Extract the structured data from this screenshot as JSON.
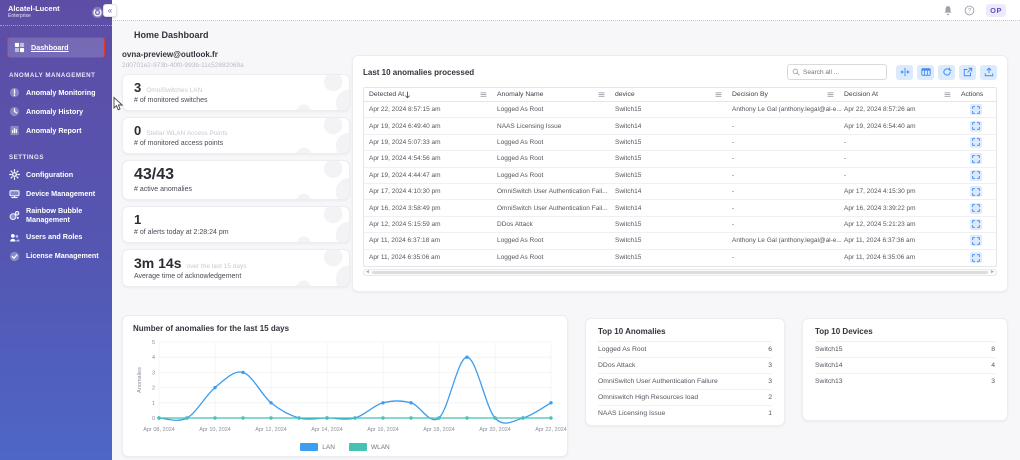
{
  "brand": {
    "name": "Alcatel-Lucent",
    "sub": "Enterprise"
  },
  "topbar": {
    "avatar_initials": "OP"
  },
  "sidebar": {
    "dashboard_label": "Dashboard",
    "sections": [
      {
        "title": "ANOMALY MANAGEMENT",
        "items": [
          {
            "label": "Anomaly Monitoring",
            "icon": "alert-circle-icon"
          },
          {
            "label": "Anomaly History",
            "icon": "history-clock-icon"
          },
          {
            "label": "Anomaly Report",
            "icon": "report-icon"
          }
        ]
      },
      {
        "title": "SETTINGS",
        "items": [
          {
            "label": "Configuration",
            "icon": "gear-icon"
          },
          {
            "label": "Device Management",
            "icon": "device-icon"
          },
          {
            "label": "Rainbow Bubble Management",
            "icon": "bubble-icon"
          },
          {
            "label": "Users and Roles",
            "icon": "users-icon"
          },
          {
            "label": "License Management",
            "icon": "license-check-icon"
          }
        ]
      }
    ]
  },
  "page": {
    "title": "Home Dashboard",
    "account_email": "ovna-preview@outlook.fr",
    "account_id": "2d0701e2-973b-40f0-993b-11c52882069a"
  },
  "stats": [
    {
      "value": "3",
      "value_suffix": "OmniSwitches LAN",
      "label": "# of monitored switches",
      "size": "small"
    },
    {
      "value": "0",
      "value_suffix": "Stellar WLAN Access Points",
      "label": "# of monitored access points",
      "size": "small"
    },
    {
      "value": "43/43",
      "value_suffix": "",
      "label": "# active anomalies",
      "size": "big"
    },
    {
      "value": "1",
      "value_suffix": "",
      "label": "# of alerts today at 2:28:24 pm",
      "size": "small"
    },
    {
      "value": "3m 14s",
      "value_suffix": "over the last 15 days",
      "label": "Average time of acknowledgement",
      "size": "med"
    }
  ],
  "anomalies_table": {
    "title": "Last 10 anomalies processed",
    "search_placeholder": "Search all ...",
    "columns": [
      "Detected At",
      "Anomaly Name",
      "device",
      "Decision By",
      "Decision At",
      "Actions"
    ],
    "rows": [
      {
        "detected_at": "Apr 22, 2024 8:57:15 am",
        "anomaly_name": "Logged As Root",
        "device": "Switch15",
        "decision_by": "Anthony Le Gal (anthony.legal@al-e...",
        "decision_at": "Apr 22, 2024 8:57:26 am"
      },
      {
        "detected_at": "Apr 19, 2024 6:49:40 am",
        "anomaly_name": "NAAS Licensing Issue",
        "device": "Switch14",
        "decision_by": "-",
        "decision_at": "Apr 19, 2024 6:54:40 am"
      },
      {
        "detected_at": "Apr 19, 2024 5:07:33 am",
        "anomaly_name": "Logged As Root",
        "device": "Switch15",
        "decision_by": "-",
        "decision_at": "-"
      },
      {
        "detected_at": "Apr 19, 2024 4:54:56 am",
        "anomaly_name": "Logged As Root",
        "device": "Switch15",
        "decision_by": "-",
        "decision_at": "-"
      },
      {
        "detected_at": "Apr 19, 2024 4:44:47 am",
        "anomaly_name": "Logged As Root",
        "device": "Switch15",
        "decision_by": "-",
        "decision_at": "-"
      },
      {
        "detected_at": "Apr 17, 2024 4:10:30 pm",
        "anomaly_name": "OmniSwitch User Authentication Fail...",
        "device": "Switch14",
        "decision_by": "-",
        "decision_at": "Apr 17, 2024 4:15:30 pm"
      },
      {
        "detected_at": "Apr 16, 2024 3:58:49 pm",
        "anomaly_name": "OmniSwitch User Authentication Fail...",
        "device": "Switch14",
        "decision_by": "-",
        "decision_at": "Apr 16, 2024 3:39:22 pm"
      },
      {
        "detected_at": "Apr 12, 2024 5:15:59 am",
        "anomaly_name": "DDos Attack",
        "device": "Switch15",
        "decision_by": "-",
        "decision_at": "Apr 12, 2024 5:21:23 am"
      },
      {
        "detected_at": "Apr 11, 2024 6:37:18 am",
        "anomaly_name": "Logged As Root",
        "device": "Switch15",
        "decision_by": "Anthony Le Gal (anthony.legal@al-e...",
        "decision_at": "Apr 11, 2024 6:37:36 am"
      },
      {
        "detected_at": "Apr 11, 2024 6:35:06 am",
        "anomaly_name": "Logged As Root",
        "device": "Switch15",
        "decision_by": "-",
        "decision_at": "Apr 11, 2024 6:35:06 am"
      }
    ]
  },
  "chart_data": {
    "type": "line",
    "title": "Number of anomalies for the last 15 days",
    "x": [
      "Apr 08, 2024",
      "Apr 09, 2024",
      "Apr 10, 2024",
      "Apr 11, 2024",
      "Apr 12, 2024",
      "Apr 13, 2024",
      "Apr 14, 2024",
      "Apr 15, 2024",
      "Apr 16, 2024",
      "Apr 17, 2024",
      "Apr 18, 2024",
      "Apr 19, 2024",
      "Apr 20, 2024",
      "Apr 21, 2024",
      "Apr 22, 2024"
    ],
    "x_tick_labels": [
      "Apr 08, 2024",
      "Apr 10, 2024",
      "Apr 12, 2024",
      "Apr 14, 2024",
      "Apr 16, 2024",
      "Apr 18, 2024",
      "Apr 20, 2024",
      "Apr 22, 2024"
    ],
    "ylabel": "Anomalies",
    "ylim": [
      0,
      5
    ],
    "grid": true,
    "legend_position": "bottom",
    "series": [
      {
        "name": "LAN",
        "color": "#3d9df0",
        "values": [
          0,
          0,
          2,
          3,
          1,
          0,
          0,
          0,
          1,
          1,
          0,
          4,
          0,
          0,
          1
        ]
      },
      {
        "name": "WLAN",
        "color": "#45c2b1",
        "values": [
          0,
          0,
          0,
          0,
          0,
          0,
          0,
          0,
          0,
          0,
          0,
          0,
          0,
          0,
          0
        ]
      }
    ]
  },
  "top_anomalies": {
    "title": "Top 10 Anomalies",
    "items": [
      {
        "name": "Logged As Root",
        "count": 6
      },
      {
        "name": "DDos Attack",
        "count": 3
      },
      {
        "name": "OmniSwitch User Authentication Failure",
        "count": 3
      },
      {
        "name": "Omniswitch High Resources load",
        "count": 2
      },
      {
        "name": "NAAS Licensing Issue",
        "count": 1
      }
    ]
  },
  "top_devices": {
    "title": "Top 10 Devices",
    "items": [
      {
        "name": "Switch15",
        "count": 8
      },
      {
        "name": "Switch14",
        "count": 4
      },
      {
        "name": "Switch13",
        "count": 3
      }
    ]
  }
}
